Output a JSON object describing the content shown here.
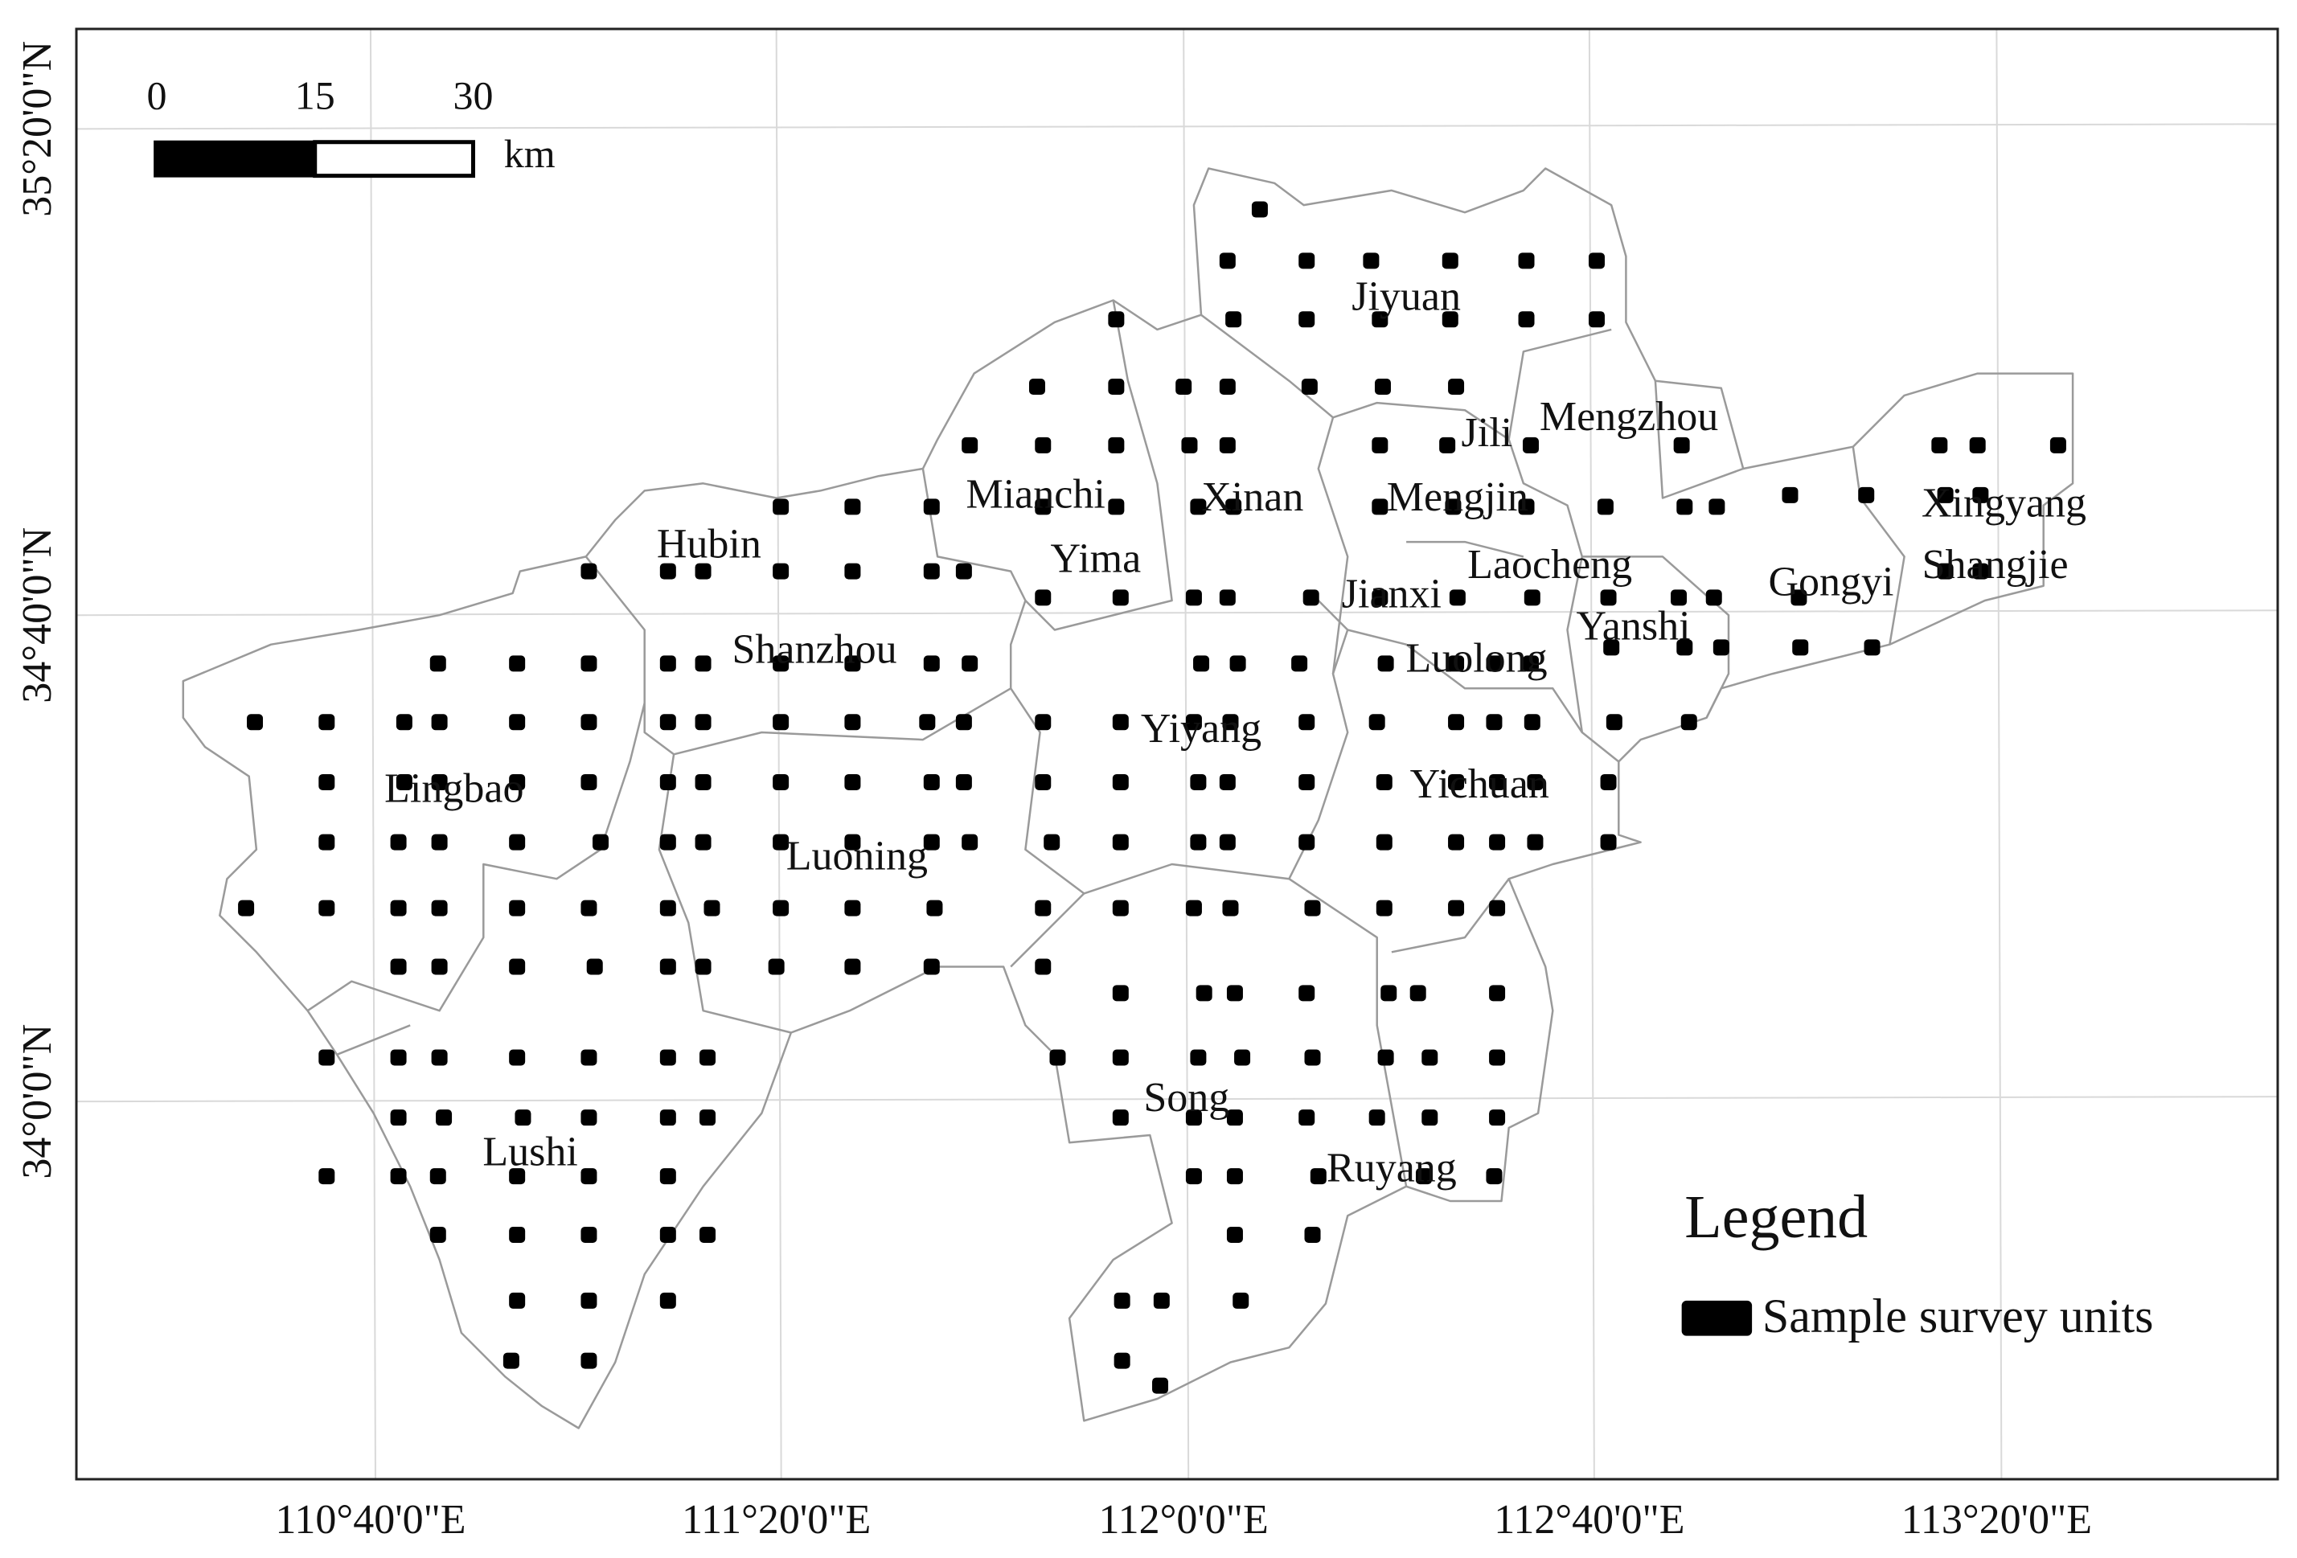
{
  "scale_bar": {
    "ticks": [
      0,
      15,
      30
    ],
    "unit": "km"
  },
  "graticule": {
    "longitudes": [
      "110°40'0\"E",
      "111°20'0\"E",
      "112°0'0\"E",
      "112°40'0\"E",
      "113°20'0\"E"
    ],
    "latitudes": [
      "35°20'0\"N",
      "34°40'0\"N",
      "34°0'0\"N"
    ]
  },
  "regions": [
    "Jiyuan",
    "Mengzhou",
    "Jili",
    "Mianchi",
    "Xinan",
    "Mengjin",
    "Xingyang",
    "Hubin",
    "Yima",
    "Laocheng",
    "Shangjie",
    "Gongyi",
    "Jianxi",
    "Yanshi",
    "Shanzhou",
    "Luolong",
    "Yiyang",
    "Lingbao",
    "Yichuan",
    "Luoning",
    "Song",
    "Lushi",
    "Ruyang"
  ],
  "legend": {
    "title": "Legend",
    "items": [
      "Sample survey units"
    ]
  }
}
